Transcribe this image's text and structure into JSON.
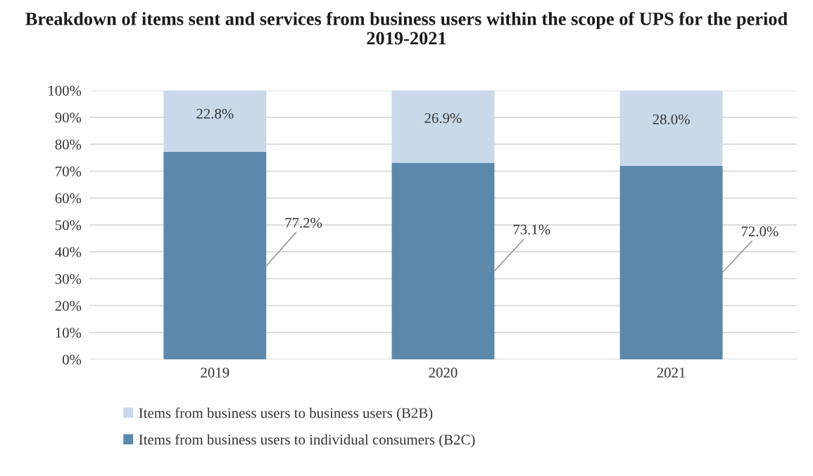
{
  "chart_data": {
    "type": "bar",
    "stacked": true,
    "title": "Breakdown of items sent and services from business users within the scope of UPS for the period 2019-2021",
    "categories": [
      "2019",
      "2020",
      "2021"
    ],
    "series": [
      {
        "name": "Items from business users to individual consumers (B2C)",
        "color": "#5b88ab",
        "values": [
          77.2,
          73.1,
          72.0
        ],
        "value_labels": [
          "77.2%",
          "73.1%",
          "72.0%"
        ]
      },
      {
        "name": "Items from business users to business users (B2B)",
        "color": "#c9d9ea",
        "values": [
          22.8,
          26.9,
          28.0
        ],
        "value_labels": [
          "22.8%",
          "26.9%",
          "28.0%"
        ]
      }
    ],
    "ylim": [
      0,
      100
    ],
    "yticks": [
      {
        "value": 0,
        "label": "0%"
      },
      {
        "value": 10,
        "label": "10%"
      },
      {
        "value": 20,
        "label": "20%"
      },
      {
        "value": 30,
        "label": "30%"
      },
      {
        "value": 40,
        "label": "40%"
      },
      {
        "value": 50,
        "label": "50%"
      },
      {
        "value": 60,
        "label": "60%"
      },
      {
        "value": 70,
        "label": "70%"
      },
      {
        "value": 80,
        "label": "80%"
      },
      {
        "value": 90,
        "label": "90%"
      },
      {
        "value": 100,
        "label": "100%"
      }
    ],
    "grid": "y",
    "legend": "bottom"
  }
}
